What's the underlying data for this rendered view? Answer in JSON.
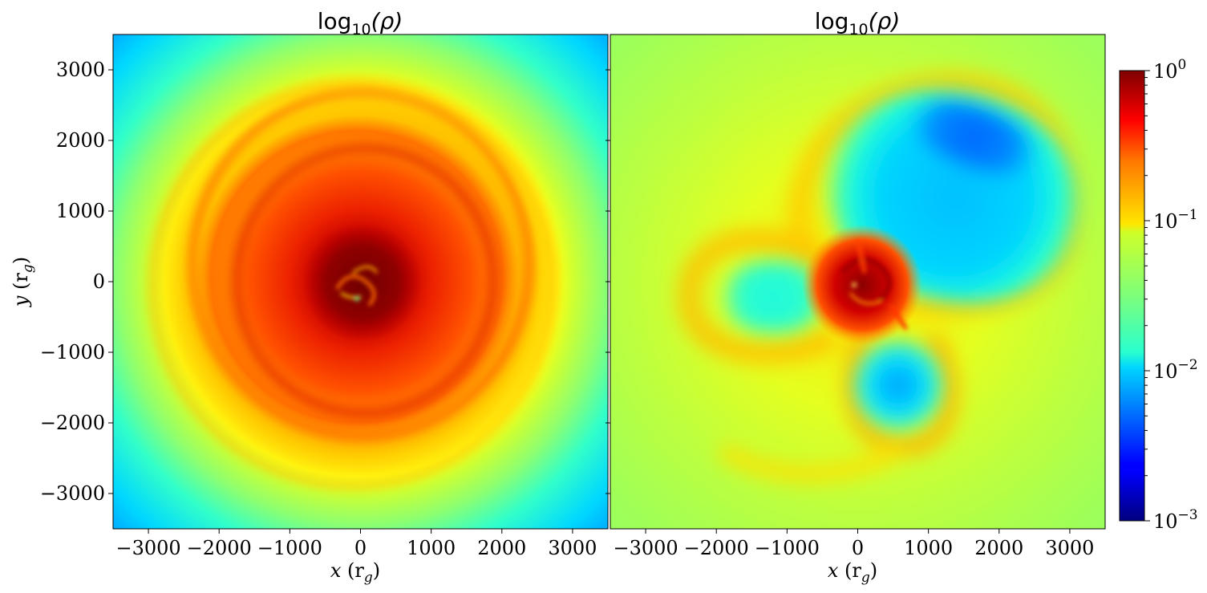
{
  "chart_data": {
    "type": "heatmap",
    "colormap": "jet",
    "colorbar": {
      "scale": "log",
      "range": [
        0.001,
        1
      ],
      "ticks": [
        {
          "value": 1,
          "base": "10",
          "exp": "0"
        },
        {
          "value": 0.1,
          "base": "10",
          "exp": "−1"
        },
        {
          "value": 0.01,
          "base": "10",
          "exp": "−2"
        },
        {
          "value": 0.001,
          "base": "10",
          "exp": "−3"
        }
      ]
    },
    "panels": [
      {
        "id": "left",
        "title_main": "log",
        "title_sub": "10",
        "title_rest": "(ρ)",
        "xlabel_var": "x",
        "xlabel_unit": "(r",
        "xlabel_sub": "g",
        "xlabel_close": ")",
        "ylabel_var": "y",
        "ylabel_unit": "(r",
        "ylabel_sub": "g",
        "ylabel_close": ")",
        "xlim": [
          -3500,
          3500
        ],
        "ylim": [
          -3500,
          3500
        ],
        "xticks": [
          -3000,
          -2000,
          -1000,
          0,
          1000,
          2000,
          3000
        ],
        "yticks": [
          -3000,
          -2000,
          -1000,
          0,
          1000,
          2000,
          3000
        ],
        "structure": "roughly axisymmetric dense disk; density ~1 near center, ~0.1 near r≈2000, ~0.01 at corners"
      },
      {
        "id": "right",
        "title_main": "log",
        "title_sub": "10",
        "title_rest": "(ρ)",
        "xlabel_var": "x",
        "xlabel_unit": "(r",
        "xlabel_sub": "g",
        "xlabel_close": ")",
        "xlim": [
          -3500,
          3500
        ],
        "ylim": [
          -3500,
          3500
        ],
        "xticks": [
          -3000,
          -2000,
          -1000,
          0,
          1000,
          2000,
          3000
        ],
        "structure": "dense compact core with three low-density lobes (upper-right, left, lower) bounded by denser arms; background ~0.05"
      }
    ],
    "tick_labels": [
      "−3000",
      "−2000",
      "−1000",
      "0",
      "1000",
      "2000",
      "3000"
    ]
  }
}
